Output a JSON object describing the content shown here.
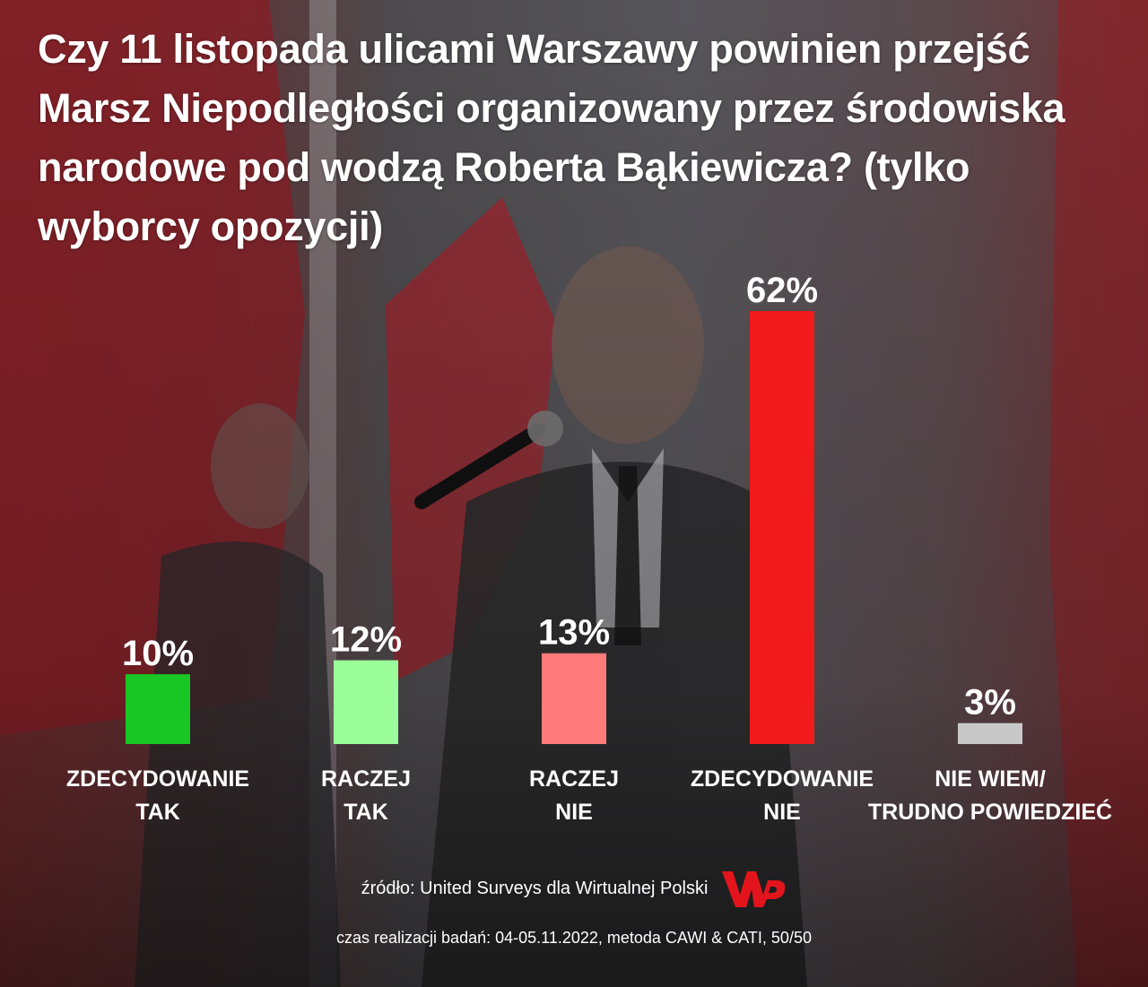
{
  "title": "Czy 11 listopada ulicami Warszawy powinien przejść Marsz Niepodległości organizowany przez środowiska narodowe pod wodzą Roberta Bąkiewicza? (tylko wyborcy opozycji)",
  "source": "źródło: United Surveys dla Wirtualnej Polski",
  "meta": "czas realizacji badań: 04-05.11.2022, metoda CAWI & CATI, 50/50",
  "logo": {
    "name": "wp-logo",
    "color": "#e3141b"
  },
  "colors": {
    "zdecydowanie_tak": "#18c723",
    "raczej_tak": "#9cfe9a",
    "raczej_nie": "#ff7b7b",
    "zdecydowanie_nie": "#f21b1b",
    "nie_wiem": "#c8c8c8"
  },
  "chart_data": {
    "type": "bar",
    "categories": [
      [
        "ZDECYDOWANIE",
        "TAK"
      ],
      [
        "RACZEJ",
        "TAK"
      ],
      [
        "RACZEJ",
        "NIE"
      ],
      [
        "ZDECYDOWANIE",
        "NIE"
      ],
      [
        "NIE WIEM/",
        "TRUDNO POWIEDZIEĆ"
      ]
    ],
    "values": [
      10,
      12,
      13,
      62,
      3
    ],
    "value_labels": [
      "10%",
      "12%",
      "13%",
      "62%",
      "3%"
    ],
    "bar_colors": [
      "#18c723",
      "#9cfe9a",
      "#ff7b7b",
      "#f21b1b",
      "#c8c8c8"
    ],
    "unit": "%",
    "ylim": [
      0,
      62
    ],
    "title": "Czy 11 listopada ulicami Warszawy powinien przejść Marsz Niepodległości organizowany przez środowiska narodowe pod wodzą Roberta Bąkiewicza? (tylko wyborcy opozycji)",
    "xlabel": "",
    "ylabel": "",
    "grid": false,
    "legend": "none"
  }
}
